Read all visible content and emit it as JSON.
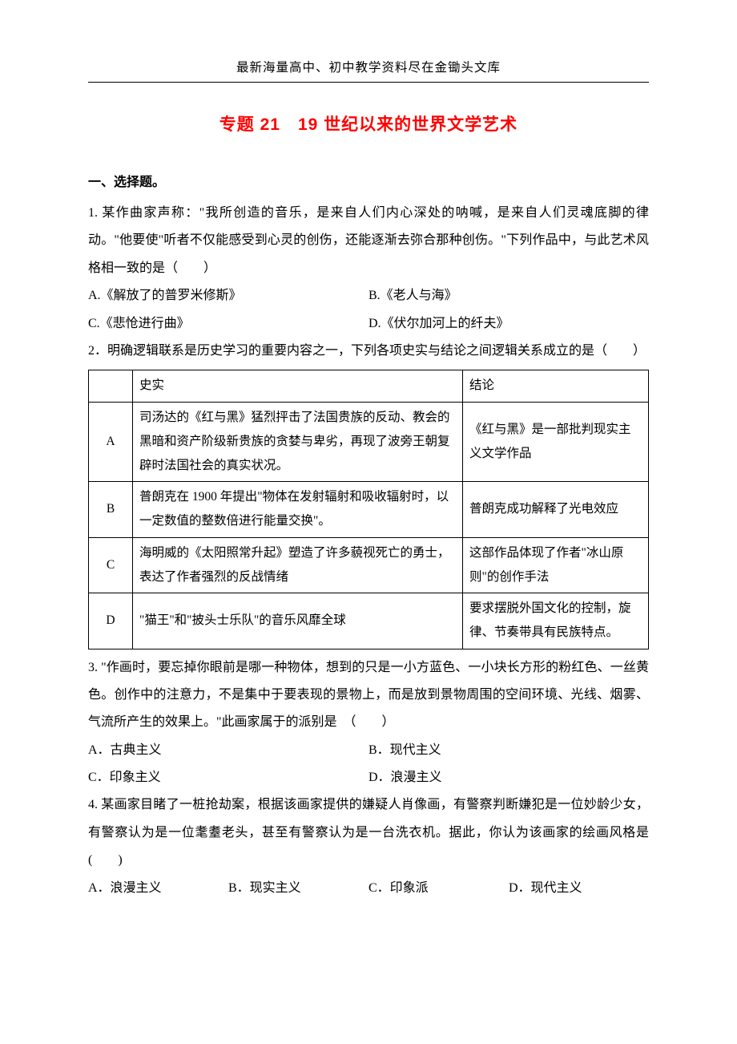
{
  "header": "最新海量高中、初中教学资料尽在金锄头文库",
  "title": "专题 21　19 世纪以来的世界文学艺术",
  "section1_heading": "一、选择题。",
  "q1": {
    "stem": "1. 某作曲家声称：\"我所创造的音乐，是来自人们内心深处的呐喊，是来自人们灵魂底脚的律动。\"他要使\"听者不仅能感受到心灵的创伤，还能逐渐去弥合那种创伤。\"下列作品中，与此艺术风格相一致的是（　　）",
    "A": "A.《解放了的普罗米修斯》",
    "B": "B.《老人与海》",
    "C": "C.《悲怆进行曲》",
    "D": "D.《伏尔加河上的纤夫》"
  },
  "q2": {
    "stem": "2．明确逻辑联系是历史学习的重要内容之一，下列各项史实与结论之间逻辑关系成立的是（　　）",
    "table": {
      "h1": "",
      "h2": "史实",
      "h3": "结论",
      "rows": [
        {
          "k": "A",
          "fact": "司汤达的《红与黑》猛烈抨击了法国贵族的反动、教会的黑暗和资产阶级新贵族的贪婪与卑劣，再现了波旁王朝复辟时法国社会的真实状况。",
          "conc": "《红与黑》是一部批判现实主义文学作品"
        },
        {
          "k": "B",
          "fact": "普朗克在 1900 年提出\"物体在发射辐射和吸收辐射时，以一定数值的整数倍进行能量交换\"。",
          "conc": "普朗克成功解释了光电效应"
        },
        {
          "k": "C",
          "fact": "海明威的《太阳照常升起》塑造了许多藐视死亡的勇士，表达了作者强烈的反战情绪",
          "conc": "这部作品体现了作者\"冰山原则\"的创作手法"
        },
        {
          "k": "D",
          "fact": "\"猫王\"和\"披头士乐队\"的音乐风靡全球",
          "conc": "要求摆脱外国文化的控制，旋律、节奏带具有民族特点。"
        }
      ]
    }
  },
  "q3": {
    "stem": "3. \"作画时，要忘掉你眼前是哪一种物体，想到的只是一小方蓝色、一小块长方形的粉红色、一丝黄色。创作中的注意力，不是集中于要表现的景物上，而是放到景物周围的空间环境、光线、烟雾、气流所产生的效果上。\"此画家属于的派别是　（　　）",
    "A": "A．古典主义",
    "B": "B．现代主义",
    "C": "C．印象主义",
    "D": "D．浪漫主义"
  },
  "q4": {
    "stem": "4. 某画家目睹了一桩抢劫案，根据该画家提供的嫌疑人肖像画，有警察判断嫌犯是一位妙龄少女，有警察认为是一位耄耋老头，甚至有警察认为是一台洗衣机。据此，你认为该画家的绘画风格是(　　)",
    "A": "A．浪漫主义",
    "B": "B．现实主义",
    "C": "C．印象派",
    "D": "D．现代主义"
  },
  "colors": {
    "title_color": "#ff0000",
    "text_color": "#000000",
    "background": "#ffffff",
    "border_color": "#000000"
  },
  "typography": {
    "body_font": "SimSun",
    "heading_font": "SimHei",
    "body_size_pt": 12,
    "title_size_pt": 16,
    "line_height": 2.15
  }
}
